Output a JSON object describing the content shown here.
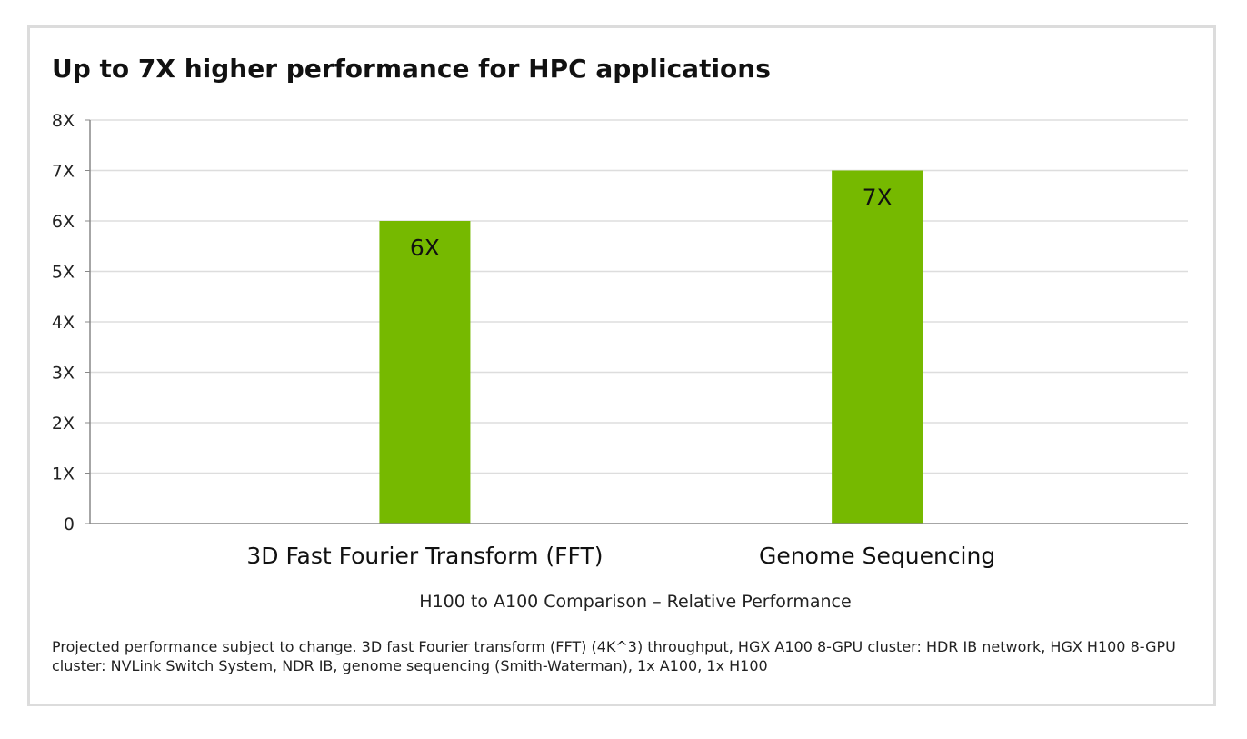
{
  "title": "Up to 7X higher performance for HPC applications",
  "footnote": "Projected performance subject to change. 3D fast Fourier transform (FFT) (4K^3) throughput, HGX A100 8-GPU cluster: HDR IB network, HGX H100 8-GPU cluster: NVLink Switch System, NDR IB, genome sequencing (Smith-Waterman), 1x A100, 1x H100",
  "colors": {
    "bar": "#76b900",
    "grid": "#dddddd",
    "axis": "#888888",
    "border": "#dcdcdc"
  },
  "chart_data": {
    "type": "bar",
    "title": "Up to 7X higher performance for HPC applications",
    "categories": [
      "3D Fast Fourier Transform (FFT)",
      "Genome Sequencing"
    ],
    "values": [
      6,
      7
    ],
    "data_labels": [
      "6X",
      "7X"
    ],
    "xlabel": "H100 to A100 Comparison – Relative Performance",
    "ylabel": "",
    "ylim": [
      0,
      8
    ],
    "yticks": [
      0,
      1,
      2,
      3,
      4,
      5,
      6,
      7,
      8
    ],
    "ytick_labels": [
      "0",
      "1X",
      "2X",
      "3X",
      "4X",
      "5X",
      "6X",
      "7X",
      "8X"
    ],
    "grid": true,
    "legend": "none"
  }
}
